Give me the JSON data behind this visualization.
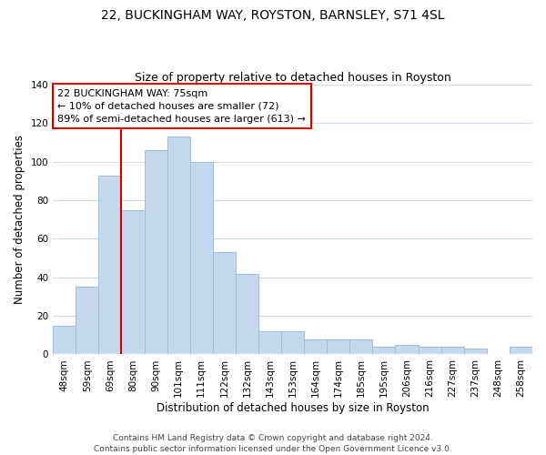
{
  "title": "22, BUCKINGHAM WAY, ROYSTON, BARNSLEY, S71 4SL",
  "subtitle": "Size of property relative to detached houses in Royston",
  "xlabel": "Distribution of detached houses by size in Royston",
  "ylabel": "Number of detached properties",
  "bar_labels": [
    "48sqm",
    "59sqm",
    "69sqm",
    "80sqm",
    "90sqm",
    "101sqm",
    "111sqm",
    "122sqm",
    "132sqm",
    "143sqm",
    "153sqm",
    "164sqm",
    "174sqm",
    "185sqm",
    "195sqm",
    "206sqm",
    "216sqm",
    "227sqm",
    "237sqm",
    "248sqm",
    "258sqm"
  ],
  "bar_values": [
    15,
    35,
    93,
    75,
    106,
    113,
    100,
    53,
    42,
    12,
    12,
    8,
    8,
    8,
    4,
    5,
    4,
    4,
    3,
    0,
    4
  ],
  "bar_color": "#c5d8ed",
  "bar_edge_color": "#a0bcd8",
  "vline_x_index": 3,
  "vline_color": "#cc0000",
  "annotation_box_text": "22 BUCKINGHAM WAY: 75sqm\n← 10% of detached houses are smaller (72)\n89% of semi-detached houses are larger (613) →",
  "annotation_box_color": "#cc0000",
  "ylim": [
    0,
    140
  ],
  "yticks": [
    0,
    20,
    40,
    60,
    80,
    100,
    120,
    140
  ],
  "footer_text": "Contains HM Land Registry data © Crown copyright and database right 2024.\nContains public sector information licensed under the Open Government Licence v3.0.",
  "background_color": "#ffffff",
  "grid_color": "#d0dde8",
  "title_fontsize": 10,
  "subtitle_fontsize": 9,
  "axis_label_fontsize": 8.5,
  "tick_fontsize": 7.5,
  "annotation_fontsize": 8,
  "footer_fontsize": 6.5
}
